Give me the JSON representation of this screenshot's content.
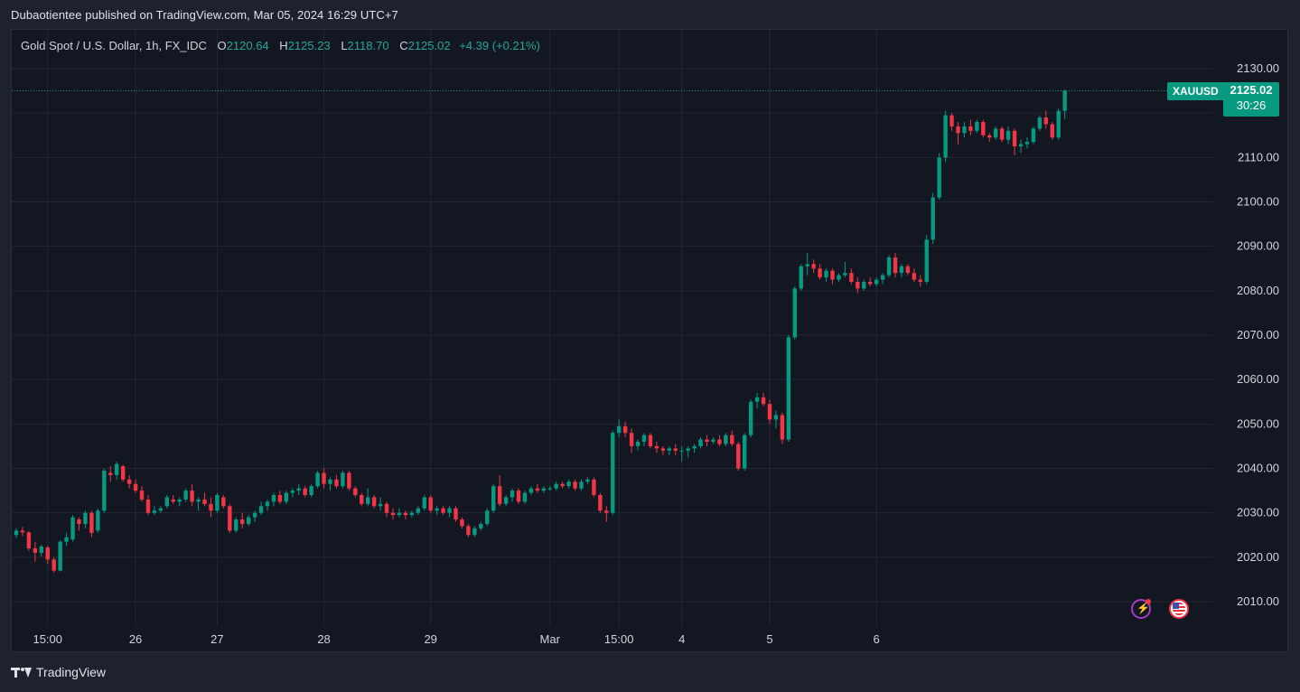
{
  "header": {
    "published": "Dubaotientee published on TradingView.com, Mar 05, 2024 16:29 UTC+7"
  },
  "legend": {
    "symbol": "Gold Spot / U.S. Dollar, 1h, FX_IDC",
    "o_label": "O",
    "o_value": "2120.64",
    "h_label": "H",
    "h_value": "2125.23",
    "l_label": "L",
    "l_value": "2118.70",
    "c_label": "C",
    "c_value": "2125.02",
    "change": "+4.39 (+0.21%)"
  },
  "price_tag": {
    "symbol": "XAUUSD",
    "price": "2125.02",
    "countdown": "30:26"
  },
  "footer": {
    "brand": "TradingView"
  },
  "colors": {
    "up": "#089981",
    "down": "#f23645",
    "background": "#131722",
    "grid": "#232733"
  },
  "icons": [
    "flash-event-icon",
    "us-flag-event-icon",
    "tradingview-logo-icon"
  ],
  "chart_data": {
    "type": "candlestick",
    "ylim": [
      2005,
      2135
    ],
    "y_ticks": [
      2010,
      2020,
      2030,
      2040,
      2050,
      2060,
      2070,
      2080,
      2090,
      2100,
      2110,
      2120,
      2130
    ],
    "y_tick_labels": [
      "2010.00",
      "2020.00",
      "2030.00",
      "2040.00",
      "2050.00",
      "2060.00",
      "2070.00",
      "2080.00",
      "2090.00",
      "2100.00",
      "2110.00",
      "2120.00",
      "2130.00"
    ],
    "x_tick_labels": [
      "15:00",
      "26",
      "27",
      "28",
      "29",
      "Mar",
      "15:00",
      "4",
      "5",
      "6"
    ],
    "x_tick_bar_index": [
      5,
      19,
      32,
      49,
      66,
      85,
      96,
      106,
      120,
      137
    ],
    "last_price": 2125.02,
    "candles": [
      [
        2025.0,
        2026.5,
        2024.3,
        2026.0
      ],
      [
        2026.0,
        2026.8,
        2024.8,
        2025.6
      ],
      [
        2025.6,
        2025.9,
        2021.5,
        2022.0
      ],
      [
        2022.0,
        2023.5,
        2019.0,
        2021.0
      ],
      [
        2021.0,
        2022.8,
        2020.2,
        2022.4
      ],
      [
        2022.2,
        2022.6,
        2018.5,
        2019.5
      ],
      [
        2019.5,
        2020.0,
        2016.5,
        2017.0
      ],
      [
        2017.0,
        2023.8,
        2016.8,
        2023.5
      ],
      [
        2023.5,
        2025.5,
        2022.5,
        2024.5
      ],
      [
        2024.0,
        2029.5,
        2023.5,
        2029.0
      ],
      [
        2028.5,
        2029.0,
        2026.0,
        2027.5
      ],
      [
        2027.5,
        2030.5,
        2026.5,
        2030.0
      ],
      [
        2030.0,
        2030.5,
        2024.5,
        2025.5
      ],
      [
        2026.0,
        2031.0,
        2025.5,
        2030.5
      ],
      [
        2030.5,
        2040.0,
        2030.0,
        2039.5
      ],
      [
        2039.0,
        2040.5,
        2037.0,
        2038.5
      ],
      [
        2038.5,
        2041.5,
        2037.5,
        2041.0
      ],
      [
        2040.5,
        2040.8,
        2037.0,
        2037.5
      ],
      [
        2037.5,
        2038.5,
        2035.5,
        2036.5
      ],
      [
        2036.5,
        2037.5,
        2034.5,
        2035.0
      ],
      [
        2035.0,
        2036.0,
        2032.5,
        2033.0
      ],
      [
        2033.0,
        2034.0,
        2029.5,
        2030.0
      ],
      [
        2030.0,
        2031.5,
        2029.5,
        2030.5
      ],
      [
        2030.5,
        2031.5,
        2030.0,
        2031.0
      ],
      [
        2031.5,
        2034.0,
        2031.0,
        2033.5
      ],
      [
        2033.0,
        2034.0,
        2032.0,
        2032.5
      ],
      [
        2032.5,
        2033.5,
        2031.5,
        2033.0
      ],
      [
        2033.0,
        2035.5,
        2032.5,
        2035.0
      ],
      [
        2035.0,
        2036.5,
        2031.5,
        2032.5
      ],
      [
        2032.5,
        2033.5,
        2030.5,
        2033.0
      ],
      [
        2033.0,
        2034.5,
        2031.5,
        2032.0
      ],
      [
        2032.0,
        2033.5,
        2029.0,
        2030.5
      ],
      [
        2030.5,
        2034.5,
        2030.0,
        2034.0
      ],
      [
        2033.5,
        2034.0,
        2031.0,
        2031.5
      ],
      [
        2031.5,
        2032.0,
        2025.5,
        2026.0
      ],
      [
        2026.0,
        2029.0,
        2025.5,
        2028.5
      ],
      [
        2028.5,
        2030.0,
        2026.5,
        2027.5
      ],
      [
        2027.5,
        2029.5,
        2027.0,
        2029.0
      ],
      [
        2029.0,
        2030.5,
        2028.0,
        2030.0
      ],
      [
        2030.0,
        2032.5,
        2029.5,
        2031.5
      ],
      [
        2031.5,
        2033.0,
        2030.5,
        2032.5
      ],
      [
        2032.5,
        2034.5,
        2031.5,
        2034.0
      ],
      [
        2034.0,
        2035.0,
        2032.0,
        2032.5
      ],
      [
        2032.5,
        2035.0,
        2032.0,
        2034.5
      ],
      [
        2034.5,
        2035.5,
        2033.5,
        2035.0
      ],
      [
        2035.0,
        2036.5,
        2034.0,
        2035.5
      ],
      [
        2035.5,
        2036.0,
        2033.5,
        2034.0
      ],
      [
        2034.0,
        2036.5,
        2033.5,
        2036.0
      ],
      [
        2036.0,
        2039.5,
        2035.5,
        2039.0
      ],
      [
        2039.0,
        2040.0,
        2035.5,
        2036.5
      ],
      [
        2036.5,
        2038.0,
        2035.0,
        2037.5
      ],
      [
        2037.5,
        2038.5,
        2035.5,
        2036.0
      ],
      [
        2036.0,
        2039.5,
        2035.5,
        2039.0
      ],
      [
        2039.0,
        2039.5,
        2035.0,
        2035.5
      ],
      [
        2035.5,
        2036.0,
        2033.5,
        2034.0
      ],
      [
        2034.0,
        2034.5,
        2031.5,
        2032.0
      ],
      [
        2032.0,
        2035.5,
        2031.5,
        2033.5
      ],
      [
        2033.5,
        2034.0,
        2031.0,
        2031.5
      ],
      [
        2031.5,
        2033.5,
        2030.5,
        2032.0
      ],
      [
        2032.0,
        2032.5,
        2029.0,
        2030.0
      ],
      [
        2030.0,
        2031.0,
        2028.5,
        2029.5
      ],
      [
        2029.5,
        2031.0,
        2029.0,
        2030.0
      ],
      [
        2030.0,
        2030.5,
        2028.5,
        2029.5
      ],
      [
        2029.5,
        2030.5,
        2029.0,
        2030.0
      ],
      [
        2030.0,
        2031.5,
        2029.5,
        2031.0
      ],
      [
        2031.0,
        2034.0,
        2030.5,
        2033.5
      ],
      [
        2033.5,
        2034.0,
        2030.0,
        2030.5
      ],
      [
        2030.5,
        2031.5,
        2029.5,
        2031.0
      ],
      [
        2031.0,
        2031.5,
        2029.5,
        2030.0
      ],
      [
        2030.0,
        2031.5,
        2029.0,
        2031.0
      ],
      [
        2031.0,
        2031.5,
        2028.0,
        2028.5
      ],
      [
        2028.5,
        2029.0,
        2026.5,
        2027.0
      ],
      [
        2027.0,
        2027.5,
        2024.5,
        2025.0
      ],
      [
        2025.0,
        2027.0,
        2024.5,
        2026.5
      ],
      [
        2026.5,
        2028.0,
        2026.0,
        2027.5
      ],
      [
        2027.5,
        2031.0,
        2027.0,
        2030.5
      ],
      [
        2030.5,
        2036.5,
        2030.0,
        2036.0
      ],
      [
        2036.0,
        2038.5,
        2031.5,
        2032.0
      ],
      [
        2032.0,
        2034.0,
        2031.5,
        2033.5
      ],
      [
        2033.5,
        2035.5,
        2032.5,
        2035.0
      ],
      [
        2035.0,
        2035.5,
        2032.0,
        2032.5
      ],
      [
        2032.5,
        2035.0,
        2032.0,
        2034.5
      ],
      [
        2034.5,
        2036.0,
        2034.0,
        2035.5
      ],
      [
        2035.5,
        2036.5,
        2034.5,
        2035.0
      ],
      [
        2035.0,
        2036.0,
        2034.5,
        2035.5
      ],
      [
        2035.5,
        2036.0,
        2035.0,
        2035.5
      ],
      [
        2035.5,
        2037.0,
        2035.0,
        2036.5
      ],
      [
        2036.5,
        2037.0,
        2035.5,
        2036.0
      ],
      [
        2036.0,
        2037.5,
        2035.5,
        2037.0
      ],
      [
        2037.0,
        2037.5,
        2035.0,
        2035.5
      ],
      [
        2035.5,
        2037.5,
        2035.0,
        2037.0
      ],
      [
        2037.0,
        2038.0,
        2036.5,
        2037.5
      ],
      [
        2037.5,
        2038.0,
        2033.5,
        2034.0
      ],
      [
        2034.0,
        2034.5,
        2030.0,
        2030.5
      ],
      [
        2030.5,
        2031.5,
        2028.0,
        2030.0
      ],
      [
        2030.0,
        2048.5,
        2029.5,
        2048.0
      ],
      [
        2048.0,
        2051.0,
        2047.0,
        2049.5
      ],
      [
        2049.5,
        2050.5,
        2047.0,
        2048.0
      ],
      [
        2048.0,
        2049.0,
        2043.5,
        2045.0
      ],
      [
        2045.0,
        2046.5,
        2044.0,
        2046.0
      ],
      [
        2046.0,
        2048.0,
        2045.0,
        2047.5
      ],
      [
        2047.5,
        2048.0,
        2044.5,
        2045.0
      ],
      [
        2045.0,
        2046.0,
        2043.5,
        2044.5
      ],
      [
        2044.5,
        2045.0,
        2043.0,
        2044.0
      ],
      [
        2044.0,
        2045.0,
        2043.0,
        2044.5
      ],
      [
        2044.5,
        2045.5,
        2043.0,
        2044.0
      ],
      [
        2044.0,
        2045.0,
        2041.5,
        2044.0
      ],
      [
        2044.0,
        2045.0,
        2042.5,
        2044.5
      ],
      [
        2044.5,
        2045.5,
        2043.5,
        2045.0
      ],
      [
        2045.0,
        2047.0,
        2044.5,
        2046.5
      ],
      [
        2046.5,
        2047.5,
        2045.0,
        2046.0
      ],
      [
        2046.0,
        2047.0,
        2045.5,
        2046.5
      ],
      [
        2046.5,
        2047.5,
        2045.0,
        2045.5
      ],
      [
        2045.5,
        2048.0,
        2045.0,
        2047.5
      ],
      [
        2047.5,
        2048.5,
        2045.0,
        2045.5
      ],
      [
        2045.5,
        2046.0,
        2039.5,
        2040.0
      ],
      [
        2040.0,
        2048.0,
        2039.5,
        2047.5
      ],
      [
        2047.5,
        2055.5,
        2047.0,
        2055.0
      ],
      [
        2055.0,
        2057.0,
        2053.5,
        2056.0
      ],
      [
        2056.0,
        2057.0,
        2054.0,
        2054.5
      ],
      [
        2054.5,
        2055.5,
        2050.0,
        2051.0
      ],
      [
        2051.0,
        2053.0,
        2049.0,
        2052.0
      ],
      [
        2052.0,
        2052.5,
        2045.5,
        2046.5
      ],
      [
        2046.5,
        2070.0,
        2046.0,
        2069.5
      ],
      [
        2069.5,
        2081.0,
        2069.0,
        2080.5
      ],
      [
        2080.5,
        2086.0,
        2080.0,
        2085.5
      ],
      [
        2085.5,
        2088.5,
        2083.5,
        2086.0
      ],
      [
        2086.0,
        2087.0,
        2084.0,
        2085.0
      ],
      [
        2085.0,
        2086.0,
        2082.5,
        2083.0
      ],
      [
        2083.0,
        2085.0,
        2082.0,
        2084.5
      ],
      [
        2084.5,
        2085.0,
        2081.5,
        2082.5
      ],
      [
        2082.5,
        2084.0,
        2082.0,
        2083.5
      ],
      [
        2083.5,
        2086.5,
        2083.0,
        2084.0
      ],
      [
        2084.0,
        2085.0,
        2081.5,
        2082.0
      ],
      [
        2082.0,
        2083.0,
        2079.5,
        2080.5
      ],
      [
        2080.5,
        2082.5,
        2080.0,
        2082.0
      ],
      [
        2082.0,
        2083.0,
        2081.0,
        2081.5
      ],
      [
        2081.5,
        2083.0,
        2081.0,
        2082.5
      ],
      [
        2082.5,
        2084.0,
        2081.5,
        2083.5
      ],
      [
        2083.5,
        2088.0,
        2083.0,
        2087.5
      ],
      [
        2087.5,
        2088.5,
        2083.0,
        2084.0
      ],
      [
        2084.0,
        2086.0,
        2083.0,
        2085.5
      ],
      [
        2085.5,
        2086.0,
        2083.5,
        2084.0
      ],
      [
        2084.0,
        2085.0,
        2082.0,
        2082.5
      ],
      [
        2082.5,
        2083.5,
        2081.0,
        2082.0
      ],
      [
        2082.0,
        2092.5,
        2081.5,
        2091.5
      ],
      [
        2091.5,
        2102.0,
        2090.5,
        2101.0
      ],
      [
        2101.0,
        2111.0,
        2100.5,
        2110.0
      ],
      [
        2110.0,
        2120.5,
        2109.0,
        2119.5
      ],
      [
        2119.5,
        2120.0,
        2116.0,
        2117.0
      ],
      [
        2117.0,
        2118.0,
        2113.0,
        2115.5
      ],
      [
        2115.5,
        2118.0,
        2114.5,
        2117.0
      ],
      [
        2117.0,
        2118.5,
        2115.0,
        2116.0
      ],
      [
        2116.0,
        2118.5,
        2115.5,
        2118.0
      ],
      [
        2118.0,
        2118.5,
        2114.5,
        2115.0
      ],
      [
        2115.0,
        2115.5,
        2113.5,
        2114.5
      ],
      [
        2114.5,
        2117.0,
        2114.0,
        2116.5
      ],
      [
        2116.5,
        2117.0,
        2113.5,
        2114.0
      ],
      [
        2114.0,
        2117.0,
        2113.0,
        2116.0
      ],
      [
        2116.0,
        2116.5,
        2110.5,
        2112.5
      ],
      [
        2112.5,
        2114.0,
        2111.0,
        2113.0
      ],
      [
        2113.0,
        2114.5,
        2112.0,
        2113.5
      ],
      [
        2113.5,
        2117.0,
        2113.0,
        2116.5
      ],
      [
        2116.5,
        2119.5,
        2116.0,
        2119.0
      ],
      [
        2119.0,
        2120.5,
        2116.5,
        2117.5
      ],
      [
        2117.5,
        2118.0,
        2114.0,
        2114.5
      ],
      [
        2114.5,
        2121.0,
        2114.0,
        2120.5
      ],
      [
        2120.5,
        2125.3,
        2118.7,
        2125.0
      ]
    ]
  }
}
